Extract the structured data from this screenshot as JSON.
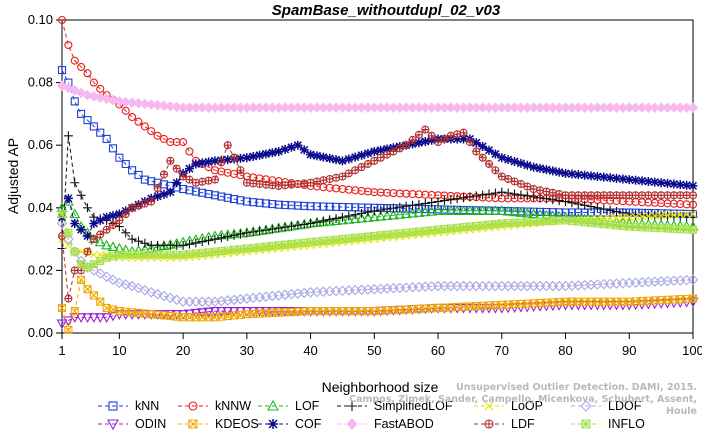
{
  "chart_data": {
    "type": "line",
    "title": "SpamBase_withoutdupl_02_v03",
    "xlabel": "Neighborhood size",
    "ylabel": "Adjusted AP",
    "xlim": [
      1,
      100
    ],
    "ylim": [
      0,
      0.1
    ],
    "x_ticks": [
      1,
      10,
      20,
      30,
      40,
      50,
      60,
      70,
      80,
      90,
      100
    ],
    "y_ticks": [
      "0.00",
      "0.02",
      "0.04",
      "0.06",
      "0.08",
      "0.10"
    ],
    "grid": false,
    "legend_position": "bottom",
    "series": [
      {
        "name": "kNN",
        "color": "#1f3fd8",
        "marker": "square",
        "x": [
          1,
          2,
          3,
          4,
          5,
          6,
          8,
          10,
          12,
          14,
          16,
          18,
          20,
          25,
          30,
          35,
          40,
          50,
          60,
          70,
          80,
          90,
          100
        ],
        "y": [
          0.084,
          0.08,
          0.074,
          0.07,
          0.068,
          0.066,
          0.062,
          0.056,
          0.052,
          0.049,
          0.048,
          0.047,
          0.046,
          0.044,
          0.042,
          0.041,
          0.0405,
          0.04,
          0.0395,
          0.039,
          0.0385,
          0.0385,
          0.038
        ]
      },
      {
        "name": "kNNW",
        "color": "#e81e1e",
        "marker": "circle",
        "x": [
          1,
          2,
          3,
          4,
          5,
          6,
          8,
          10,
          12,
          14,
          16,
          18,
          20,
          22,
          25,
          30,
          40,
          50,
          60,
          70,
          80,
          90,
          100
        ],
        "y": [
          0.1,
          0.092,
          0.087,
          0.085,
          0.083,
          0.08,
          0.076,
          0.073,
          0.069,
          0.066,
          0.063,
          0.061,
          0.061,
          0.055,
          0.052,
          0.05,
          0.047,
          0.045,
          0.044,
          0.043,
          0.043,
          0.042,
          0.041
        ]
      },
      {
        "name": "LOF",
        "color": "#22b422",
        "marker": "triangle",
        "x": [
          1,
          2,
          3,
          4,
          5,
          6,
          8,
          10,
          12,
          15,
          20,
          25,
          30,
          40,
          50,
          60,
          70,
          80,
          90,
          100
        ],
        "y": [
          0.04,
          0.042,
          0.038,
          0.034,
          0.032,
          0.03,
          0.028,
          0.027,
          0.026,
          0.027,
          0.029,
          0.031,
          0.032,
          0.035,
          0.037,
          0.039,
          0.039,
          0.037,
          0.035,
          0.034
        ]
      },
      {
        "name": "SimplifiedLOF",
        "color": "#111111",
        "marker": "plus",
        "x": [
          1,
          2,
          3,
          4,
          5,
          6,
          8,
          10,
          12,
          15,
          20,
          25,
          30,
          40,
          50,
          60,
          70,
          80,
          90,
          100
        ],
        "y": [
          0.027,
          0.063,
          0.048,
          0.044,
          0.04,
          0.037,
          0.036,
          0.034,
          0.03,
          0.028,
          0.028,
          0.03,
          0.032,
          0.035,
          0.039,
          0.042,
          0.045,
          0.042,
          0.038,
          0.037
        ]
      },
      {
        "name": "LoOP",
        "color": "#e6e600",
        "marker": "cross",
        "x": [
          1,
          2,
          3,
          4,
          5,
          6,
          8,
          10,
          12,
          15,
          20,
          25,
          30,
          40,
          50,
          60,
          70,
          80,
          90,
          100
        ],
        "y": [
          0.03,
          0.028,
          0.026,
          0.026,
          0.026,
          0.025,
          0.025,
          0.024,
          0.024,
          0.024,
          0.024,
          0.025,
          0.026,
          0.028,
          0.03,
          0.032,
          0.034,
          0.036,
          0.037,
          0.038
        ]
      },
      {
        "name": "LDOF",
        "color": "#a9a9e6",
        "marker": "diamond",
        "x": [
          1,
          2,
          3,
          4,
          5,
          6,
          8,
          10,
          12,
          15,
          20,
          25,
          30,
          40,
          50,
          60,
          70,
          80,
          90,
          100
        ],
        "y": [
          0.035,
          0.03,
          0.026,
          0.023,
          0.021,
          0.02,
          0.018,
          0.016,
          0.015,
          0.013,
          0.01,
          0.01,
          0.011,
          0.013,
          0.014,
          0.015,
          0.015,
          0.015,
          0.016,
          0.017
        ]
      },
      {
        "name": "ODIN",
        "color": "#9a1fd6",
        "marker": "triangle-down",
        "x": [
          1,
          2,
          3,
          4,
          5,
          6,
          8,
          10,
          15,
          20,
          25,
          30,
          40,
          50,
          60,
          70,
          80,
          90,
          100
        ],
        "y": [
          0.003,
          0.004,
          0.005,
          0.005,
          0.005,
          0.005,
          0.005,
          0.006,
          0.006,
          0.006,
          0.007,
          0.007,
          0.007,
          0.007,
          0.008,
          0.008,
          0.009,
          0.009,
          0.01
        ]
      },
      {
        "name": "KDEOS",
        "color": "#f0a800",
        "marker": "square-x",
        "x": [
          1,
          2,
          3,
          4,
          5,
          6,
          7,
          8,
          10,
          15,
          20,
          25,
          30,
          40,
          50,
          60,
          70,
          80,
          90,
          100
        ],
        "y": [
          0.008,
          0.001,
          0.007,
          0.017,
          0.014,
          0.012,
          0.01,
          0.008,
          0.007,
          0.006,
          0.005,
          0.005,
          0.006,
          0.007,
          0.007,
          0.008,
          0.009,
          0.01,
          0.01,
          0.011
        ]
      },
      {
        "name": "COF",
        "color": "#0a0a8c",
        "marker": "star",
        "x": [
          1,
          2,
          3,
          4,
          5,
          6,
          8,
          10,
          12,
          15,
          18,
          20,
          22,
          25,
          30,
          35,
          38,
          40,
          45,
          50,
          55,
          60,
          65,
          70,
          75,
          80,
          85,
          90,
          95,
          100
        ],
        "y": [
          0.037,
          0.043,
          0.035,
          0.033,
          0.031,
          0.035,
          0.037,
          0.038,
          0.04,
          0.043,
          0.045,
          0.051,
          0.054,
          0.055,
          0.056,
          0.058,
          0.06,
          0.057,
          0.055,
          0.058,
          0.06,
          0.062,
          0.062,
          0.056,
          0.053,
          0.051,
          0.05,
          0.049,
          0.048,
          0.047
        ]
      },
      {
        "name": "FastABOD",
        "color": "#f7b8f0",
        "marker": "diamond-filled",
        "x": [
          1,
          5,
          10,
          15,
          20,
          25,
          30,
          40,
          50,
          60,
          70,
          80,
          90,
          100
        ],
        "y": [
          0.079,
          0.076,
          0.074,
          0.073,
          0.072,
          0.072,
          0.072,
          0.072,
          0.072,
          0.072,
          0.072,
          0.072,
          0.072,
          0.072
        ]
      },
      {
        "name": "LDF",
        "color": "#b03030",
        "marker": "circle-plus",
        "x": [
          1,
          2,
          3,
          4,
          5,
          6,
          8,
          10,
          12,
          15,
          18,
          20,
          22,
          25,
          27,
          30,
          35,
          40,
          45,
          50,
          55,
          58,
          60,
          62,
          64,
          66,
          70,
          75,
          80,
          90,
          100
        ],
        "y": [
          0.031,
          0.011,
          0.02,
          0.02,
          0.026,
          0.03,
          0.033,
          0.036,
          0.04,
          0.042,
          0.055,
          0.05,
          0.048,
          0.049,
          0.06,
          0.048,
          0.047,
          0.048,
          0.05,
          0.055,
          0.06,
          0.065,
          0.061,
          0.063,
          0.064,
          0.058,
          0.05,
          0.046,
          0.044,
          0.044,
          0.044
        ]
      },
      {
        "name": "INFLO",
        "color": "#a8e04a",
        "marker": "square-star",
        "x": [
          1,
          2,
          3,
          4,
          5,
          6,
          8,
          10,
          12,
          15,
          20,
          25,
          30,
          40,
          50,
          60,
          70,
          80,
          90,
          100
        ],
        "y": [
          0.038,
          0.032,
          0.026,
          0.022,
          0.021,
          0.022,
          0.024,
          0.025,
          0.025,
          0.025,
          0.025,
          0.026,
          0.027,
          0.029,
          0.031,
          0.033,
          0.035,
          0.036,
          0.034,
          0.033
        ]
      }
    ]
  },
  "watermark": {
    "line1": "Unsupervised Outlier Detection. DAMI, 2015.",
    "line2": "Campos, Zimek, Sander, Campello, Micenkova, Schubert, Assent, Houle"
  }
}
